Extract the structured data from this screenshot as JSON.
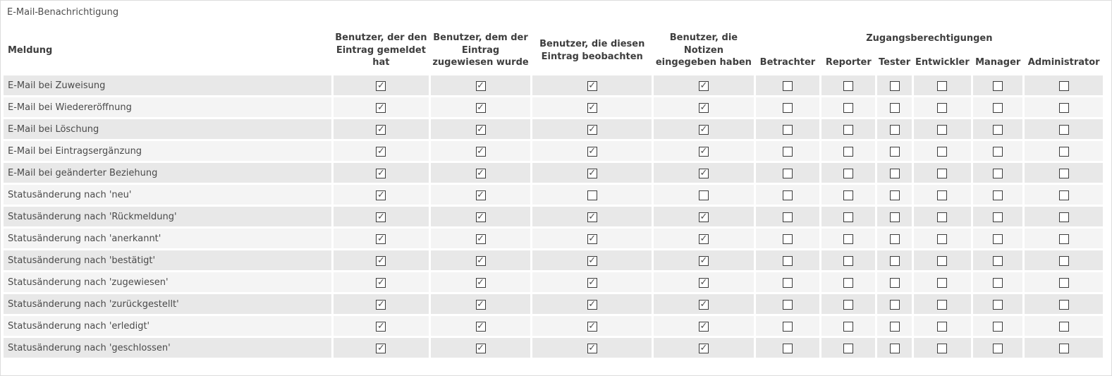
{
  "panel": {
    "title": "E-Mail-Benachrichtigung"
  },
  "colors": {
    "row_odd": "#e8e8e8",
    "row_even": "#f4f4f4",
    "border_color": "#dcdcdc",
    "title_color": "#4e4e4e",
    "header_text": "#3e3e3e",
    "row_text": "#4a4a4a",
    "checkbox_border": "#3c3c3c",
    "check_color": "#4d4d4d"
  },
  "table": {
    "message_header": "Meldung",
    "user_columns": [
      "Benutzer, der den Eintrag gemeldet hat",
      "Benutzer, dem der Eintrag zugewiesen wurde",
      "Benutzer, die diesen Eintrag beobachten",
      "Benutzer, die Notizen eingegeben haben"
    ],
    "access_group_label": "Zugangsberechtigungen",
    "access_columns": [
      "Betrachter",
      "Reporter",
      "Tester",
      "Entwickler",
      "Manager",
      "Administrator"
    ],
    "rows": [
      {
        "label": "E-Mail bei Zuweisung",
        "checks": [
          true,
          true,
          true,
          true,
          false,
          false,
          false,
          false,
          false,
          false
        ]
      },
      {
        "label": "E-Mail bei Wiedereröffnung",
        "checks": [
          true,
          true,
          true,
          true,
          false,
          false,
          false,
          false,
          false,
          false
        ]
      },
      {
        "label": "E-Mail bei Löschung",
        "checks": [
          true,
          true,
          true,
          true,
          false,
          false,
          false,
          false,
          false,
          false
        ]
      },
      {
        "label": "E-Mail bei Eintragsergänzung",
        "checks": [
          true,
          true,
          true,
          true,
          false,
          false,
          false,
          false,
          false,
          false
        ]
      },
      {
        "label": "E-Mail bei geänderter Beziehung",
        "checks": [
          true,
          true,
          true,
          true,
          false,
          false,
          false,
          false,
          false,
          false
        ]
      },
      {
        "label": "Statusänderung nach 'neu'",
        "checks": [
          true,
          true,
          false,
          false,
          false,
          false,
          false,
          false,
          false,
          false
        ]
      },
      {
        "label": "Statusänderung nach 'Rückmeldung'",
        "checks": [
          true,
          true,
          true,
          true,
          false,
          false,
          false,
          false,
          false,
          false
        ]
      },
      {
        "label": "Statusänderung nach 'anerkannt'",
        "checks": [
          true,
          true,
          true,
          true,
          false,
          false,
          false,
          false,
          false,
          false
        ]
      },
      {
        "label": "Statusänderung nach 'bestätigt'",
        "checks": [
          true,
          true,
          true,
          true,
          false,
          false,
          false,
          false,
          false,
          false
        ]
      },
      {
        "label": "Statusänderung nach 'zugewiesen'",
        "checks": [
          true,
          true,
          true,
          true,
          false,
          false,
          false,
          false,
          false,
          false
        ]
      },
      {
        "label": "Statusänderung nach 'zurückgestellt'",
        "checks": [
          true,
          true,
          true,
          true,
          false,
          false,
          false,
          false,
          false,
          false
        ]
      },
      {
        "label": "Statusänderung nach 'erledigt'",
        "checks": [
          true,
          true,
          true,
          true,
          false,
          false,
          false,
          false,
          false,
          false
        ]
      },
      {
        "label": "Statusänderung nach 'geschlossen'",
        "checks": [
          true,
          true,
          true,
          true,
          false,
          false,
          false,
          false,
          false,
          false
        ]
      }
    ]
  }
}
